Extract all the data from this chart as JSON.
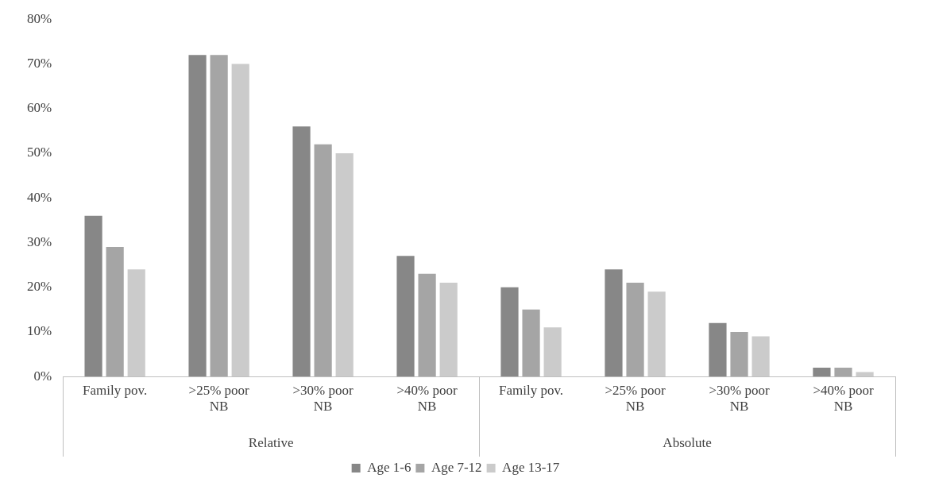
{
  "chart_data": {
    "type": "bar",
    "categories": [
      "Family pov.",
      ">25% poor NB",
      ">30% poor NB",
      ">40% poor NB",
      "Family pov.",
      ">25% poor NB",
      ">30% poor NB",
      ">40% poor NB"
    ],
    "series": [
      {
        "name": "Age 1-6",
        "color": "#878787",
        "values": [
          36,
          72,
          56,
          27,
          20,
          24,
          12,
          2
        ]
      },
      {
        "name": "Age 7-12",
        "color": "#a5a5a5",
        "values": [
          29,
          72,
          52,
          23,
          15,
          21,
          10,
          2
        ]
      },
      {
        "name": "Age 13-17",
        "color": "#cbcbcb",
        "values": [
          24,
          70,
          50,
          21,
          11,
          19,
          9,
          1
        ]
      }
    ],
    "annotations": [
      "Relative",
      "Absolute"
    ],
    "ylim": [
      0,
      80
    ],
    "yticks": [
      {
        "value": 0,
        "label": "0%"
      },
      {
        "value": 10,
        "label": "10%"
      },
      {
        "value": 20,
        "label": "20%"
      },
      {
        "value": 30,
        "label": "30%"
      },
      {
        "value": 40,
        "label": "40%"
      },
      {
        "value": 50,
        "label": "50%"
      },
      {
        "value": 60,
        "label": "60%"
      },
      {
        "value": 70,
        "label": "70%"
      },
      {
        "value": 80,
        "label": "80%"
      }
    ],
    "grid": false,
    "legend": "bottom"
  }
}
